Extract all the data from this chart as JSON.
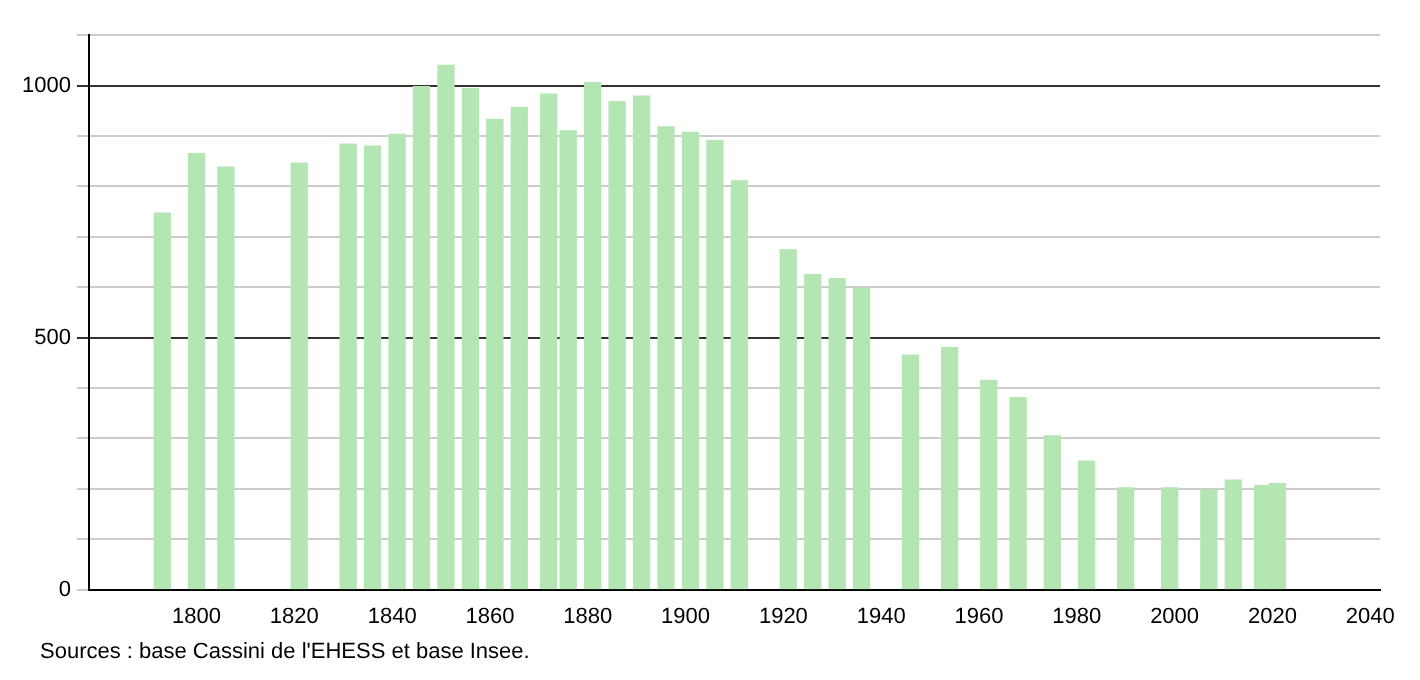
{
  "chart_data": {
    "type": "bar",
    "x": [
      1793,
      1800,
      1806,
      1821,
      1831,
      1836,
      1841,
      1846,
      1851,
      1856,
      1861,
      1866,
      1872,
      1876,
      1881,
      1886,
      1891,
      1896,
      1901,
      1906,
      1911,
      1921,
      1926,
      1931,
      1936,
      1946,
      1954,
      1962,
      1968,
      1975,
      1982,
      1990,
      1999,
      2007,
      2012,
      2018,
      2021
    ],
    "values": [
      747,
      865,
      838,
      846,
      884,
      880,
      903,
      998,
      1040,
      994,
      933,
      956,
      983,
      910,
      1006,
      968,
      979,
      918,
      907,
      891,
      811,
      674,
      625,
      617,
      598,
      465,
      480,
      415,
      381,
      305,
      255,
      202,
      202,
      198,
      217,
      206,
      210
    ],
    "color": "#b3e6b3",
    "xlim": [
      1778,
      2042
    ],
    "xticks": [
      1800,
      1820,
      1840,
      1860,
      1880,
      1900,
      1920,
      1940,
      1960,
      1980,
      2000,
      2020,
      2040
    ],
    "ylim": [
      0,
      1100
    ],
    "yticks": [
      0,
      {
        "value": 100,
        "label": null
      },
      {
        "value": 200,
        "label": null
      },
      {
        "value": 300,
        "label": null
      },
      {
        "value": 400,
        "label": null
      },
      500,
      {
        "value": 600,
        "label": null
      },
      {
        "value": 700,
        "label": null
      },
      {
        "value": 800,
        "label": null
      },
      {
        "value": 900,
        "label": null
      },
      1000,
      {
        "value": 1100,
        "label": null
      }
    ],
    "grid": "y",
    "legend": false,
    "annotations": [
      "Sources : base Cassini de l'EHESS et base Insee."
    ]
  }
}
